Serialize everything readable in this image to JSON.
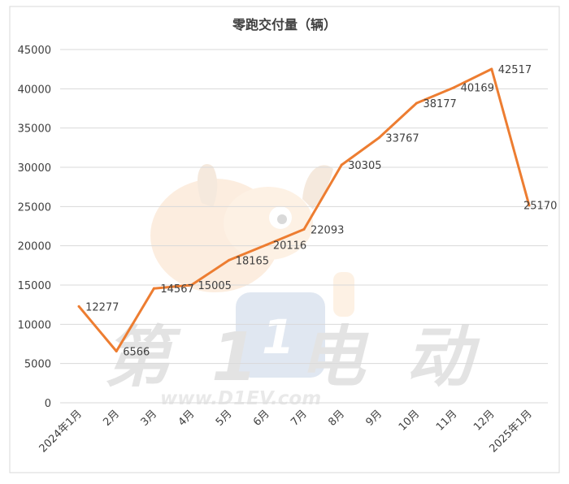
{
  "chart_data": {
    "type": "line",
    "title": "零跑交付量（辆）",
    "categories": [
      "2024年1月",
      "2月",
      "3月",
      "4月",
      "5月",
      "6月",
      "7月",
      "8月",
      "9月",
      "10月",
      "11月",
      "12月",
      "2025年1月"
    ],
    "values": [
      12277,
      6566,
      14567,
      15005,
      18165,
      20116,
      22093,
      30305,
      33767,
      38177,
      40169,
      42517,
      25170
    ],
    "value_labels": [
      "12277",
      "6566",
      "14567",
      "15005",
      "18165",
      "20116",
      "22093",
      "30305",
      "33767",
      "38177",
      "40169",
      "42517",
      "25170"
    ],
    "y_ticks": [
      "0",
      "5000",
      "10000",
      "15000",
      "20000",
      "25000",
      "30000",
      "35000",
      "40000",
      "45000"
    ],
    "ylim": [
      0,
      45000
    ],
    "grid": true,
    "legend": "none",
    "colors": {
      "line": "#ED7D31",
      "grid": "#D9D9D9",
      "text": "#404040"
    }
  },
  "watermark": {
    "text": "www.D1EV.com",
    "brand": "第1电动"
  }
}
